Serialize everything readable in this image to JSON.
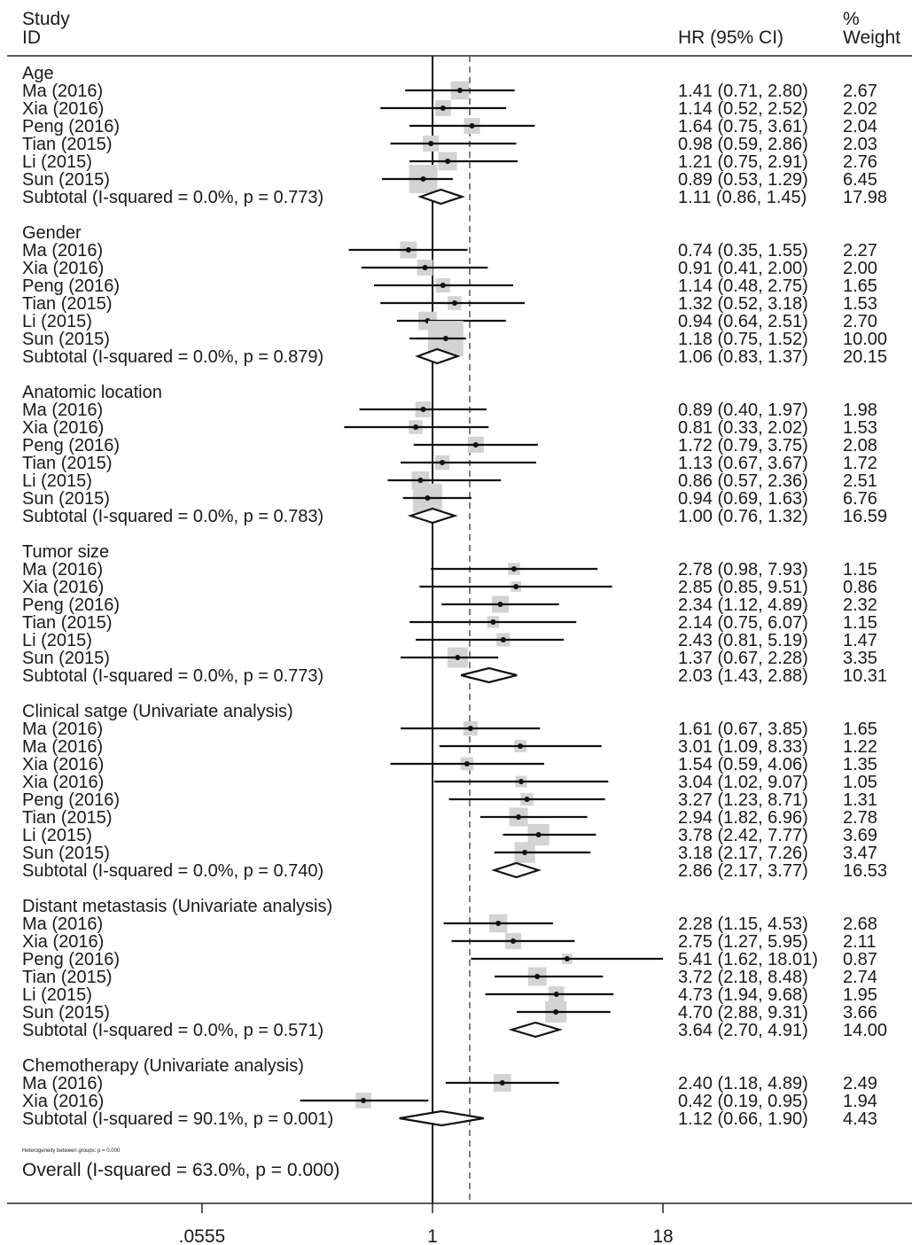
{
  "headers": {
    "study": "Study",
    "id": "ID",
    "hr": "HR (95% CI)",
    "pct": "%",
    "weight": "Weight"
  },
  "axis": {
    "type": "log",
    "ref_line": 1,
    "ticks": [
      {
        "value": 0.0555,
        "label": ".0555"
      },
      {
        "value": 1,
        "label": "1"
      },
      {
        "value": 18,
        "label": "18"
      }
    ]
  },
  "footer": {
    "heterogeneity": "Heterogeneity between groups: p = 0.000",
    "overall": "Overall  (I-squared = 63.0%, p = 0.000)"
  },
  "chart_data": {
    "type": "forest",
    "overall_estimate": 1.6,
    "groups": [
      {
        "name": "Age",
        "studies": [
          {
            "study": "Ma (2016)",
            "hr": 1.41,
            "lo": 0.71,
            "hi": 2.8,
            "ci": "1.41 (0.71, 2.80)",
            "weight": "2.67"
          },
          {
            "study": "Xia (2016)",
            "hr": 1.14,
            "lo": 0.52,
            "hi": 2.52,
            "ci": "1.14 (0.52, 2.52)",
            "weight": "2.02"
          },
          {
            "study": "Peng (2016)",
            "hr": 1.64,
            "lo": 0.75,
            "hi": 3.61,
            "ci": "1.64 (0.75, 3.61)",
            "weight": "2.04"
          },
          {
            "study": "Tian (2015)",
            "hr": 0.98,
            "lo": 0.59,
            "hi": 2.86,
            "ci": "0.98 (0.59, 2.86)",
            "weight": "2.03"
          },
          {
            "study": "Li (2015)",
            "hr": 1.21,
            "lo": 0.75,
            "hi": 2.91,
            "ci": "1.21 (0.75, 2.91)",
            "weight": "2.76"
          },
          {
            "study": "Sun (2015)",
            "hr": 0.89,
            "lo": 0.53,
            "hi": 1.29,
            "ci": "0.89 (0.53, 1.29)",
            "weight": "6.45"
          }
        ],
        "subtotal": {
          "label": "Subtotal  (I-squared = 0.0%, p = 0.773)",
          "hr": 1.11,
          "lo": 0.86,
          "hi": 1.45,
          "ci": "1.11 (0.86, 1.45)",
          "weight": "17.98"
        }
      },
      {
        "name": "Gender",
        "studies": [
          {
            "study": "Ma (2016)",
            "hr": 0.74,
            "lo": 0.35,
            "hi": 1.55,
            "ci": "0.74 (0.35, 1.55)",
            "weight": "2.27"
          },
          {
            "study": "Xia (2016)",
            "hr": 0.91,
            "lo": 0.41,
            "hi": 2.0,
            "ci": "0.91 (0.41, 2.00)",
            "weight": "2.00"
          },
          {
            "study": "Peng (2016)",
            "hr": 1.14,
            "lo": 0.48,
            "hi": 2.75,
            "ci": "1.14 (0.48, 2.75)",
            "weight": "1.65"
          },
          {
            "study": "Tian (2015)",
            "hr": 1.32,
            "lo": 0.52,
            "hi": 3.18,
            "ci": "1.32 (0.52, 3.18)",
            "weight": "1.53"
          },
          {
            "study": "Li (2015)",
            "hr": 0.94,
            "lo": 0.64,
            "hi": 2.51,
            "ci": "0.94 (0.64, 2.51)",
            "weight": "2.70"
          },
          {
            "study": "Sun (2015)",
            "hr": 1.18,
            "lo": 0.75,
            "hi": 1.52,
            "ci": "1.18 (0.75, 1.52)",
            "weight": "10.00"
          }
        ],
        "subtotal": {
          "label": "Subtotal  (I-squared = 0.0%, p = 0.879)",
          "hr": 1.06,
          "lo": 0.83,
          "hi": 1.37,
          "ci": "1.06 (0.83, 1.37)",
          "weight": "20.15"
        }
      },
      {
        "name": "Anatomic location",
        "studies": [
          {
            "study": "Ma (2016)",
            "hr": 0.89,
            "lo": 0.4,
            "hi": 1.97,
            "ci": "0.89 (0.40, 1.97)",
            "weight": "1.98"
          },
          {
            "study": "Xia (2016)",
            "hr": 0.81,
            "lo": 0.33,
            "hi": 2.02,
            "ci": "0.81 (0.33, 2.02)",
            "weight": "1.53"
          },
          {
            "study": "Peng (2016)",
            "hr": 1.72,
            "lo": 0.79,
            "hi": 3.75,
            "ci": "1.72 (0.79, 3.75)",
            "weight": "2.08"
          },
          {
            "study": "Tian (2015)",
            "hr": 1.13,
            "lo": 0.67,
            "hi": 3.67,
            "ci": "1.13 (0.67, 3.67)",
            "weight": "1.72"
          },
          {
            "study": "Li (2015)",
            "hr": 0.86,
            "lo": 0.57,
            "hi": 2.36,
            "ci": "0.86 (0.57, 2.36)",
            "weight": "2.51"
          },
          {
            "study": "Sun (2015)",
            "hr": 0.94,
            "lo": 0.69,
            "hi": 1.63,
            "ci": "0.94 (0.69, 1.63)",
            "weight": "6.76"
          }
        ],
        "subtotal": {
          "label": "Subtotal  (I-squared = 0.0%, p = 0.783)",
          "hr": 1.0,
          "lo": 0.76,
          "hi": 1.32,
          "ci": "1.00 (0.76, 1.32)",
          "weight": "16.59"
        }
      },
      {
        "name": "Tumor size",
        "studies": [
          {
            "study": "Ma (2016)",
            "hr": 2.78,
            "lo": 0.98,
            "hi": 7.93,
            "ci": "2.78 (0.98, 7.93)",
            "weight": "1.15"
          },
          {
            "study": "Xia (2016)",
            "hr": 2.85,
            "lo": 0.85,
            "hi": 9.51,
            "ci": "2.85 (0.85, 9.51)",
            "weight": "0.86"
          },
          {
            "study": "Peng (2016)",
            "hr": 2.34,
            "lo": 1.12,
            "hi": 4.89,
            "ci": "2.34 (1.12, 4.89)",
            "weight": "2.32"
          },
          {
            "study": "Tian (2015)",
            "hr": 2.14,
            "lo": 0.75,
            "hi": 6.07,
            "ci": "2.14 (0.75, 6.07)",
            "weight": "1.15"
          },
          {
            "study": "Li (2015)",
            "hr": 2.43,
            "lo": 0.81,
            "hi": 5.19,
            "ci": "2.43 (0.81, 5.19)",
            "weight": "1.47"
          },
          {
            "study": "Sun (2015)",
            "hr": 1.37,
            "lo": 0.67,
            "hi": 2.28,
            "ci": "1.37 (0.67, 2.28)",
            "weight": "3.35"
          }
        ],
        "subtotal": {
          "label": "Subtotal  (I-squared = 0.0%, p = 0.773)",
          "hr": 2.03,
          "lo": 1.43,
          "hi": 2.88,
          "ci": "2.03 (1.43, 2.88)",
          "weight": "10.31"
        }
      },
      {
        "name": "Clinical satge (Univariate analysis)",
        "studies": [
          {
            "study": "Ma (2016)",
            "hr": 1.61,
            "lo": 0.67,
            "hi": 3.85,
            "ci": "1.61 (0.67, 3.85)",
            "weight": "1.65"
          },
          {
            "study": "Ma (2016)",
            "hr": 3.01,
            "lo": 1.09,
            "hi": 8.33,
            "ci": "3.01 (1.09, 8.33)",
            "weight": "1.22"
          },
          {
            "study": "Xia (2016)",
            "hr": 1.54,
            "lo": 0.59,
            "hi": 4.06,
            "ci": "1.54 (0.59, 4.06)",
            "weight": "1.35"
          },
          {
            "study": "Xia (2016)",
            "hr": 3.04,
            "lo": 1.02,
            "hi": 9.07,
            "ci": "3.04 (1.02, 9.07)",
            "weight": "1.05"
          },
          {
            "study": "Peng (2016)",
            "hr": 3.27,
            "lo": 1.23,
            "hi": 8.71,
            "ci": "3.27 (1.23, 8.71)",
            "weight": "1.31"
          },
          {
            "study": "Tian (2015)",
            "hr": 2.94,
            "lo": 1.82,
            "hi": 6.96,
            "ci": "2.94 (1.82, 6.96)",
            "weight": "2.78"
          },
          {
            "study": "Li (2015)",
            "hr": 3.78,
            "lo": 2.42,
            "hi": 7.77,
            "ci": "3.78 (2.42, 7.77)",
            "weight": "3.69"
          },
          {
            "study": "Sun (2015)",
            "hr": 3.18,
            "lo": 2.17,
            "hi": 7.26,
            "ci": "3.18 (2.17, 7.26)",
            "weight": "3.47"
          }
        ],
        "subtotal": {
          "label": "Subtotal  (I-squared = 0.0%, p = 0.740)",
          "hr": 2.86,
          "lo": 2.17,
          "hi": 3.77,
          "ci": "2.86 (2.17, 3.77)",
          "weight": "16.53"
        }
      },
      {
        "name": "Distant metastasis (Univariate analysis)",
        "studies": [
          {
            "study": "Ma (2016)",
            "hr": 2.28,
            "lo": 1.15,
            "hi": 4.53,
            "ci": "2.28 (1.15, 4.53)",
            "weight": "2.68"
          },
          {
            "study": "Xia (2016)",
            "hr": 2.75,
            "lo": 1.27,
            "hi": 5.95,
            "ci": "2.75 (1.27, 5.95)",
            "weight": "2.11"
          },
          {
            "study": "Peng (2016)",
            "hr": 5.41,
            "lo": 1.62,
            "hi": 18.01,
            "ci": "5.41 (1.62, 18.01)",
            "weight": "0.87"
          },
          {
            "study": "Tian (2015)",
            "hr": 3.72,
            "lo": 2.18,
            "hi": 8.48,
            "ci": "3.72 (2.18, 8.48)",
            "weight": "2.74"
          },
          {
            "study": "Li (2015)",
            "hr": 4.73,
            "lo": 1.94,
            "hi": 9.68,
            "ci": "4.73 (1.94, 9.68)",
            "weight": "1.95"
          },
          {
            "study": "Sun (2015)",
            "hr": 4.7,
            "lo": 2.88,
            "hi": 9.31,
            "ci": "4.70 (2.88, 9.31)",
            "weight": "3.66"
          }
        ],
        "subtotal": {
          "label": "Subtotal  (I-squared = 0.0%, p = 0.571)",
          "hr": 3.64,
          "lo": 2.7,
          "hi": 4.91,
          "ci": "3.64 (2.70, 4.91)",
          "weight": "14.00"
        }
      },
      {
        "name": "Chemotherapy (Univariate analysis)",
        "studies": [
          {
            "study": "Ma (2016)",
            "hr": 2.4,
            "lo": 1.18,
            "hi": 4.89,
            "ci": "2.40 (1.18, 4.89)",
            "weight": "2.49"
          },
          {
            "study": "Xia (2016)",
            "hr": 0.42,
            "lo": 0.19,
            "hi": 0.95,
            "ci": "0.42 (0.19, 0.95)",
            "weight": "1.94"
          }
        ],
        "subtotal": {
          "label": "Subtotal  (I-squared = 90.1%, p = 0.001)",
          "hr": 1.12,
          "lo": 0.66,
          "hi": 1.9,
          "ci": "1.12 (0.66, 1.90)",
          "weight": "4.43"
        }
      }
    ]
  }
}
